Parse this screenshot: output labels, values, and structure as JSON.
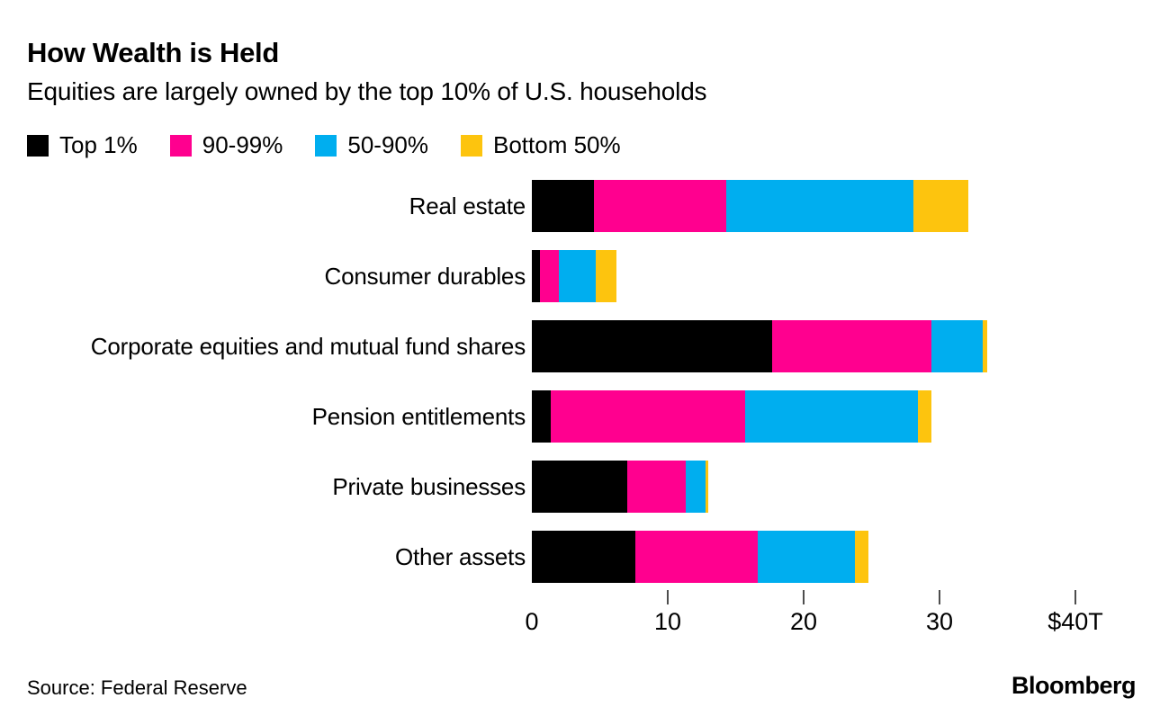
{
  "header": {
    "title": "How Wealth is Held",
    "subtitle": "Equities are largely owned by the top 10% of U.S. households"
  },
  "legend": [
    {
      "label": "Top 1%",
      "color": "#000000"
    },
    {
      "label": "90-99%",
      "color": "#ff008f"
    },
    {
      "label": "50-90%",
      "color": "#00aeef"
    },
    {
      "label": "Bottom 50%",
      "color": "#fdc40e"
    }
  ],
  "chart_data": {
    "type": "bar",
    "orientation": "horizontal",
    "stacked": true,
    "unit": "trillions of U.S. dollars",
    "categories": [
      "Real estate",
      "Consumer durables",
      "Corporate equities and mutual fund shares",
      "Pension entitlements",
      "Private businesses",
      "Other assets"
    ],
    "series": [
      {
        "name": "Top 1%",
        "color": "#000000",
        "values": [
          4.6,
          0.6,
          17.7,
          1.4,
          7.0,
          7.6
        ]
      },
      {
        "name": "90-99%",
        "color": "#ff008f",
        "values": [
          9.7,
          1.4,
          11.7,
          14.3,
          4.3,
          9.0
        ]
      },
      {
        "name": "50-90%",
        "color": "#00aeef",
        "values": [
          13.8,
          2.7,
          3.8,
          12.7,
          1.5,
          7.2
        ]
      },
      {
        "name": "Bottom 50%",
        "color": "#fdc40e",
        "values": [
          4.0,
          1.5,
          0.3,
          1.0,
          0.2,
          1.0
        ]
      }
    ],
    "xlim": [
      0,
      40
    ],
    "xticks": [
      {
        "value": 0,
        "label": "0"
      },
      {
        "value": 10,
        "label": "10"
      },
      {
        "value": 20,
        "label": "20"
      },
      {
        "value": 30,
        "label": "30"
      },
      {
        "value": 40,
        "label": "$40T"
      }
    ],
    "grid": false,
    "legend_position": "top"
  },
  "footer": {
    "source": "Source: Federal Reserve",
    "brand": "Bloomberg"
  }
}
